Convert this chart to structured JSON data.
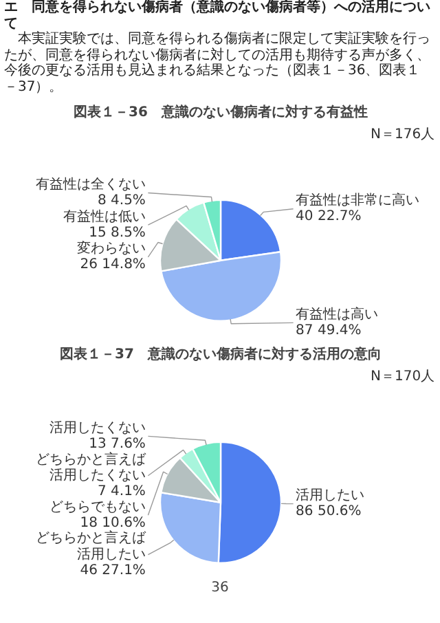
{
  "chart_data": [
    {
      "type": "pie",
      "title": "図表１－36　意識のない傷病者に対する有益性",
      "subtitle": "N＝176人",
      "annotations": [
        "エ　同意を得られない傷病者（意識のない傷病者等）への活用について",
        "　本実証実験では、同意を得られる傷病者に限定して実証実験を行ったが、同意を得られない傷病者に対しての活用も期待する声が多く、今後の更なる活用も見込まれる結果となった（図表１－36、図表１－37）。"
      ],
      "categories": [
        "有益性は非常に高い",
        "有益性は高い",
        "変わらない",
        "有益性は低い",
        "有益性は全くない"
      ],
      "values": [
        40,
        87,
        26,
        15,
        8
      ],
      "value_labels": [
        "40\n22.7%",
        "87\n49.4%",
        "26\n14.8%",
        "15\n8.5%",
        "8\n4.5%"
      ],
      "colors": [
        "#4f7ff0",
        "#94b6f5",
        "#b4c0c0",
        "#a8f5dc",
        "#6fe8c4"
      ]
    },
    {
      "type": "pie",
      "title": "図表１－37　意識のない傷病者に対する活用の意向",
      "subtitle": "N＝170人",
      "annotations": [
        "36"
      ],
      "categories": [
        "活用したい",
        "どちらかと言えば活用したい",
        "どちらでもない",
        "どちらかと言えば活用したくない",
        "活用したくない"
      ],
      "values": [
        86,
        46,
        18,
        7,
        13
      ],
      "value_labels": [
        "86\n50.6%",
        "46\n27.1%",
        "18\n10.6%",
        "7\n4.1%",
        "13\n7.6%"
      ],
      "colors": [
        "#4f7ff0",
        "#94b6f5",
        "#b4c0c0",
        "#a8f5dc",
        "#6fe8c4"
      ]
    }
  ]
}
